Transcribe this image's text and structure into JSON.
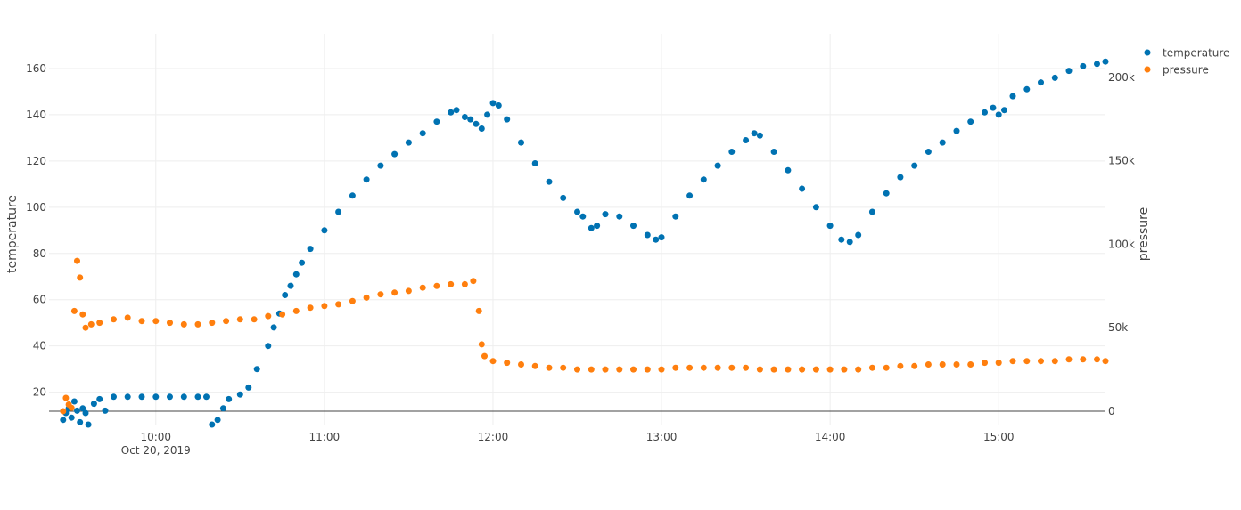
{
  "chart_data": {
    "type": "scatter",
    "x_axis": {
      "kind": "date",
      "range": [
        "2019-10-20 09:22",
        "2019-10-20 15:38"
      ],
      "ticks": [
        {
          "time": "10:00",
          "label": "10:00",
          "sublabel": "Oct 20, 2019"
        },
        {
          "time": "11:00",
          "label": "11:00",
          "sublabel": ""
        },
        {
          "time": "12:00",
          "label": "12:00",
          "sublabel": ""
        },
        {
          "time": "13:00",
          "label": "13:00",
          "sublabel": ""
        },
        {
          "time": "14:00",
          "label": "14:00",
          "sublabel": ""
        },
        {
          "time": "15:00",
          "label": "15:00",
          "sublabel": ""
        }
      ]
    },
    "y_axis_left": {
      "label": "temperature",
      "range": [
        6,
        175
      ],
      "ticks": [
        {
          "value": 20,
          "label": "20"
        },
        {
          "value": 40,
          "label": "40"
        },
        {
          "value": 60,
          "label": "60"
        },
        {
          "value": 80,
          "label": "80"
        },
        {
          "value": 100,
          "label": "100"
        },
        {
          "value": 120,
          "label": "120"
        },
        {
          "value": 140,
          "label": "140"
        },
        {
          "value": 160,
          "label": "160"
        }
      ]
    },
    "y_axis_right": {
      "label": "pressure",
      "range": [
        -8000,
        226000
      ],
      "ticks": [
        {
          "value": 0,
          "label": "0"
        },
        {
          "value": 50000,
          "label": "50k"
        },
        {
          "value": 100000,
          "label": "100k"
        },
        {
          "value": 150000,
          "label": "150k"
        },
        {
          "value": 200000,
          "label": "200k"
        }
      ]
    },
    "grid": true,
    "legend_position": "top-right",
    "series": [
      {
        "name": "temperature",
        "color": "#0072b2",
        "axis": "left",
        "points": [
          [
            "09:27",
            8
          ],
          [
            "09:28",
            11
          ],
          [
            "09:29",
            13
          ],
          [
            "09:30",
            9
          ],
          [
            "09:31",
            16
          ],
          [
            "09:32",
            12
          ],
          [
            "09:33",
            7
          ],
          [
            "09:34",
            13
          ],
          [
            "09:35",
            11
          ],
          [
            "09:36",
            6
          ],
          [
            "09:38",
            15
          ],
          [
            "09:40",
            17
          ],
          [
            "09:42",
            12
          ],
          [
            "09:45",
            18
          ],
          [
            "09:50",
            18
          ],
          [
            "09:55",
            18
          ],
          [
            "10:00",
            18
          ],
          [
            "10:05",
            18
          ],
          [
            "10:10",
            18
          ],
          [
            "10:15",
            18
          ],
          [
            "10:18",
            18
          ],
          [
            "10:20",
            6
          ],
          [
            "10:22",
            8
          ],
          [
            "10:24",
            13
          ],
          [
            "10:26",
            17
          ],
          [
            "10:30",
            19
          ],
          [
            "10:33",
            22
          ],
          [
            "10:36",
            30
          ],
          [
            "10:40",
            40
          ],
          [
            "10:42",
            48
          ],
          [
            "10:44",
            54
          ],
          [
            "10:46",
            62
          ],
          [
            "10:48",
            66
          ],
          [
            "10:50",
            71
          ],
          [
            "10:52",
            76
          ],
          [
            "10:55",
            82
          ],
          [
            "11:00",
            90
          ],
          [
            "11:05",
            98
          ],
          [
            "11:10",
            105
          ],
          [
            "11:15",
            112
          ],
          [
            "11:20",
            118
          ],
          [
            "11:25",
            123
          ],
          [
            "11:30",
            128
          ],
          [
            "11:35",
            132
          ],
          [
            "11:40",
            137
          ],
          [
            "11:45",
            141
          ],
          [
            "11:47",
            142
          ],
          [
            "11:50",
            139
          ],
          [
            "11:52",
            138
          ],
          [
            "11:54",
            136
          ],
          [
            "11:56",
            134
          ],
          [
            "11:58",
            140
          ],
          [
            "12:00",
            145
          ],
          [
            "12:02",
            144
          ],
          [
            "12:05",
            138
          ],
          [
            "12:10",
            128
          ],
          [
            "12:15",
            119
          ],
          [
            "12:20",
            111
          ],
          [
            "12:25",
            104
          ],
          [
            "12:30",
            98
          ],
          [
            "12:32",
            96
          ],
          [
            "12:35",
            91
          ],
          [
            "12:37",
            92
          ],
          [
            "12:40",
            97
          ],
          [
            "12:45",
            96
          ],
          [
            "12:50",
            92
          ],
          [
            "12:55",
            88
          ],
          [
            "12:58",
            86
          ],
          [
            "13:00",
            87
          ],
          [
            "13:05",
            96
          ],
          [
            "13:10",
            105
          ],
          [
            "13:15",
            112
          ],
          [
            "13:20",
            118
          ],
          [
            "13:25",
            124
          ],
          [
            "13:30",
            129
          ],
          [
            "13:33",
            132
          ],
          [
            "13:35",
            131
          ],
          [
            "13:40",
            124
          ],
          [
            "13:45",
            116
          ],
          [
            "13:50",
            108
          ],
          [
            "13:55",
            100
          ],
          [
            "14:00",
            92
          ],
          [
            "14:04",
            86
          ],
          [
            "14:07",
            85
          ],
          [
            "14:10",
            88
          ],
          [
            "14:15",
            98
          ],
          [
            "14:20",
            106
          ],
          [
            "14:25",
            113
          ],
          [
            "14:30",
            118
          ],
          [
            "14:35",
            124
          ],
          [
            "14:40",
            128
          ],
          [
            "14:45",
            133
          ],
          [
            "14:50",
            137
          ],
          [
            "14:55",
            141
          ],
          [
            "14:58",
            143
          ],
          [
            "15:00",
            140
          ],
          [
            "15:02",
            142
          ],
          [
            "15:05",
            148
          ],
          [
            "15:10",
            151
          ],
          [
            "15:15",
            154
          ],
          [
            "15:20",
            156
          ],
          [
            "15:25",
            159
          ],
          [
            "15:30",
            161
          ],
          [
            "15:35",
            162
          ],
          [
            "15:38",
            163
          ]
        ]
      },
      {
        "name": "pressure",
        "color": "#ff7f0e",
        "axis": "right",
        "points": [
          [
            "09:27",
            0
          ],
          [
            "09:28",
            8000
          ],
          [
            "09:29",
            4000
          ],
          [
            "09:30",
            2000
          ],
          [
            "09:31",
            60000
          ],
          [
            "09:32",
            90000
          ],
          [
            "09:33",
            80000
          ],
          [
            "09:34",
            58000
          ],
          [
            "09:35",
            50000
          ],
          [
            "09:37",
            52000
          ],
          [
            "09:40",
            53000
          ],
          [
            "09:45",
            55000
          ],
          [
            "09:50",
            56000
          ],
          [
            "09:55",
            54000
          ],
          [
            "10:00",
            54000
          ],
          [
            "10:05",
            53000
          ],
          [
            "10:10",
            52000
          ],
          [
            "10:15",
            52000
          ],
          [
            "10:20",
            53000
          ],
          [
            "10:25",
            54000
          ],
          [
            "10:30",
            55000
          ],
          [
            "10:35",
            55000
          ],
          [
            "10:40",
            57000
          ],
          [
            "10:45",
            58000
          ],
          [
            "10:50",
            60000
          ],
          [
            "10:55",
            62000
          ],
          [
            "11:00",
            63000
          ],
          [
            "11:05",
            64000
          ],
          [
            "11:10",
            66000
          ],
          [
            "11:15",
            68000
          ],
          [
            "11:20",
            70000
          ],
          [
            "11:25",
            71000
          ],
          [
            "11:30",
            72000
          ],
          [
            "11:35",
            74000
          ],
          [
            "11:40",
            75000
          ],
          [
            "11:45",
            76000
          ],
          [
            "11:50",
            76000
          ],
          [
            "11:53",
            78000
          ],
          [
            "11:55",
            60000
          ],
          [
            "11:56",
            40000
          ],
          [
            "11:57",
            33000
          ],
          [
            "12:00",
            30000
          ],
          [
            "12:05",
            29000
          ],
          [
            "12:10",
            28000
          ],
          [
            "12:15",
            27000
          ],
          [
            "12:20",
            26000
          ],
          [
            "12:25",
            26000
          ],
          [
            "12:30",
            25000
          ],
          [
            "12:35",
            25000
          ],
          [
            "12:40",
            25000
          ],
          [
            "12:45",
            25000
          ],
          [
            "12:50",
            25000
          ],
          [
            "12:55",
            25000
          ],
          [
            "13:00",
            25000
          ],
          [
            "13:05",
            26000
          ],
          [
            "13:10",
            26000
          ],
          [
            "13:15",
            26000
          ],
          [
            "13:20",
            26000
          ],
          [
            "13:25",
            26000
          ],
          [
            "13:30",
            26000
          ],
          [
            "13:35",
            25000
          ],
          [
            "13:40",
            25000
          ],
          [
            "13:45",
            25000
          ],
          [
            "13:50",
            25000
          ],
          [
            "13:55",
            25000
          ],
          [
            "14:00",
            25000
          ],
          [
            "14:05",
            25000
          ],
          [
            "14:10",
            25000
          ],
          [
            "14:15",
            26000
          ],
          [
            "14:20",
            26000
          ],
          [
            "14:25",
            27000
          ],
          [
            "14:30",
            27000
          ],
          [
            "14:35",
            28000
          ],
          [
            "14:40",
            28000
          ],
          [
            "14:45",
            28000
          ],
          [
            "14:50",
            28000
          ],
          [
            "14:55",
            29000
          ],
          [
            "15:00",
            29000
          ],
          [
            "15:05",
            30000
          ],
          [
            "15:10",
            30000
          ],
          [
            "15:15",
            30000
          ],
          [
            "15:20",
            30000
          ],
          [
            "15:25",
            31000
          ],
          [
            "15:30",
            31000
          ],
          [
            "15:35",
            31000
          ],
          [
            "15:38",
            30000
          ]
        ]
      }
    ]
  }
}
